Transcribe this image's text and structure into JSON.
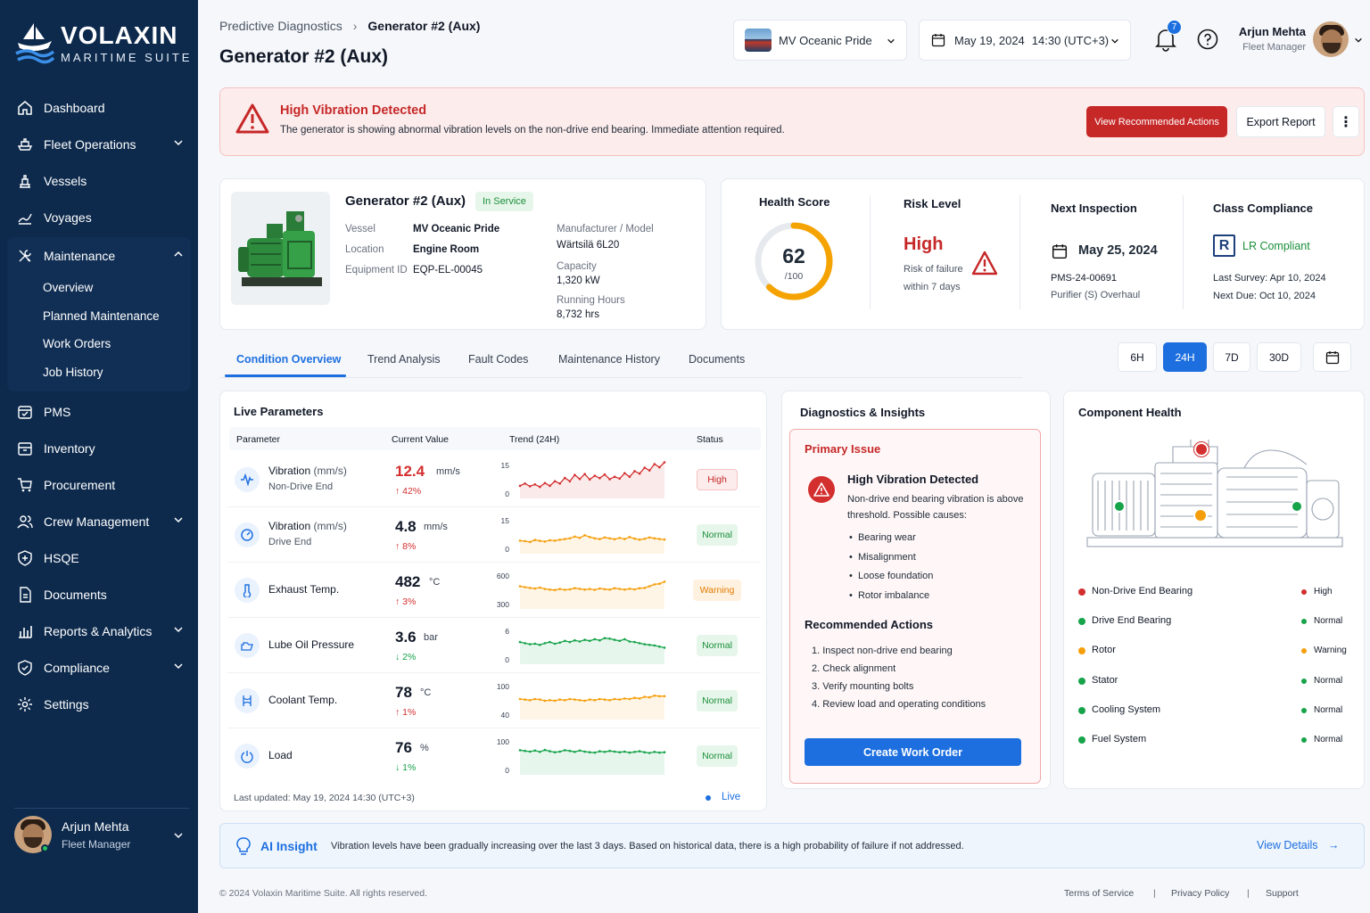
{
  "brand": {
    "title": "VOLAXIN",
    "subtitle": "MARITIME SUITE"
  },
  "sidebar": {
    "items": [
      {
        "label": "Dashboard",
        "icon": "home-icon"
      },
      {
        "label": "Fleet Operations",
        "icon": "ship-icon"
      },
      {
        "label": "Vessels",
        "icon": "vessel-icon"
      },
      {
        "label": "Voyages",
        "icon": "route-icon"
      },
      {
        "label": "Maintenance",
        "icon": "tools-icon"
      },
      {
        "label": "PMS",
        "icon": "calendar-check-icon"
      },
      {
        "label": "Inventory",
        "icon": "box-icon"
      },
      {
        "label": "Procurement",
        "icon": "cart-icon"
      },
      {
        "label": "Crew Management",
        "icon": "users-icon"
      },
      {
        "label": "HSQE",
        "icon": "shield-icon"
      },
      {
        "label": "Documents",
        "icon": "document-icon"
      },
      {
        "label": "Reports & Analytics",
        "icon": "bar-chart-icon"
      },
      {
        "label": "Compliance",
        "icon": "compliance-icon"
      },
      {
        "label": "Settings",
        "icon": "gear-icon"
      }
    ],
    "maintenance_sub": [
      "Overview",
      "Planned Maintenance",
      "Work Orders",
      "Job History"
    ],
    "user": {
      "name": "Arjun Mehta",
      "role": "Fleet Manager"
    }
  },
  "header": {
    "breadcrumb_parent": "Predictive Diagnostics",
    "breadcrumb_current": "Generator #2 (Aux)",
    "title": "Generator #2 (Aux)",
    "vessel": "MV Oceanic Pride",
    "date": "May 19, 2024",
    "time": "14:30 (UTC+3)",
    "notifications": "7",
    "user_name": "Arjun Mehta",
    "user_role": "Fleet Manager"
  },
  "alert": {
    "title": "High Vibration Detected",
    "message": "The generator is showing abnormal vibration levels on the non-drive end bearing. Immediate attention required.",
    "primary_action": "View Recommended Actions",
    "secondary_action": "Export Report"
  },
  "equipment": {
    "name": "Generator #2 (Aux)",
    "status": "In Service",
    "vessel_label": "Vessel",
    "vessel": "MV Oceanic Pride",
    "location_label": "Location",
    "location": "Engine Room",
    "id_label": "Equipment ID",
    "id": "EQP-EL-00045",
    "model_label": "Manufacturer / Model",
    "model": "Wärtsilä 6L20",
    "capacity_label": "Capacity",
    "capacity": "1,320 kW",
    "hours_label": "Running Hours",
    "hours": "8,732 hrs"
  },
  "summary": {
    "health_label": "Health Score",
    "health_value": "62",
    "health_max": "/100",
    "health_fraction": 0.62,
    "risk_label": "Risk Level",
    "risk_value": "High",
    "risk_line1": "Risk of failure",
    "risk_line2": "within 7 days",
    "inspection_label": "Next Inspection",
    "inspection_date": "May 25, 2024",
    "inspection_id": "PMS-24-00691",
    "inspection_task": "Purifier (S) Overhaul",
    "class_label": "Class Compliance",
    "class_value": "LR Compliant",
    "last_survey": "Last Survey:  Apr 10, 2024",
    "next_due": "Next Due:  Oct 10, 2024"
  },
  "tabs": [
    "Condition Overview",
    "Trend Analysis",
    "Fault Codes",
    "Maintenance History",
    "Documents"
  ],
  "ranges": [
    "6H",
    "24H",
    "7D",
    "30D"
  ],
  "live": {
    "title": "Live Parameters",
    "headers": {
      "param": "Parameter",
      "value": "Current Value",
      "trend": "Trend (24H)",
      "status": "Status"
    },
    "rows": [
      {
        "name": "Vibration",
        "unit_paren": "(mm/s)",
        "sub": "Non-Drive End",
        "value": "12.4",
        "unit": "mm/s",
        "change": "↑ 42%",
        "ymax": "15",
        "ymin": "0",
        "status": "High",
        "color": "#d32f2f",
        "trend": [
          4,
          5,
          3.8,
          4.6,
          3.5,
          5.2,
          4,
          6,
          5,
          7.5,
          6,
          8.8,
          7,
          9.2,
          6.8,
          8.5,
          7.4,
          9,
          6.9,
          8,
          7.2,
          9.6,
          8,
          10.5,
          9.4,
          12,
          10.8,
          13.6,
          12.2,
          14.4
        ]
      },
      {
        "name": "Vibration",
        "unit_paren": "(mm/s)",
        "sub": "Drive End",
        "value": "4.8",
        "unit": "mm/s",
        "change": "↑ 8%",
        "ymax": "15",
        "ymin": "0",
        "status": "Normal",
        "color": "#f59e0b",
        "trend": [
          4.2,
          4,
          3.6,
          4.5,
          4.1,
          3.8,
          4.4,
          4.2,
          4.6,
          4.9,
          5.2,
          6,
          5.4,
          6.6,
          5.8,
          5.2,
          4.9,
          5.6,
          5.2,
          4.8,
          5.4,
          4.9,
          5.8,
          5.1,
          4.6,
          5,
          5.6,
          5.2,
          4.9,
          4.7
        ]
      },
      {
        "name": "Exhaust Temp.",
        "unit_paren": "",
        "sub": "",
        "value": "482",
        "unit": "°C",
        "change": "↑ 3%",
        "ymax": "600",
        "ymin": "300",
        "status": "Warning",
        "color": "#f59e0b",
        "trend": [
          470,
          462,
          455,
          450,
          458,
          446,
          440,
          436,
          445,
          438,
          442,
          452,
          447,
          440,
          445,
          438,
          450,
          444,
          440,
          452,
          446,
          440,
          448,
          442,
          452,
          455,
          470,
          486,
          492,
          510
        ]
      },
      {
        "name": "Lube Oil Pressure",
        "unit_paren": "",
        "sub": "",
        "value": "3.6",
        "unit": "bar",
        "change": "↓ 2%",
        "ymax": "6",
        "ymin": "0",
        "status": "Normal",
        "color": "#16a34a",
        "trend": [
          3.3,
          3.1,
          2.9,
          3,
          2.8,
          3.1,
          3.3,
          3,
          3.2,
          3.5,
          3.3,
          3.6,
          3.4,
          3.7,
          3.5,
          3.8,
          3.6,
          4,
          3.9,
          3.7,
          3.5,
          3.8,
          3.4,
          3.3,
          3.1,
          2.9,
          2.8,
          2.7,
          2.5,
          2.3
        ]
      },
      {
        "name": "Coolant Temp.",
        "unit_paren": "",
        "sub": "",
        "value": "78",
        "unit": "°C",
        "change": "↑ 1%",
        "ymax": "100",
        "ymin": "40",
        "status": "Normal",
        "color": "#f59e0b",
        "trend": [
          70,
          69,
          68,
          70,
          69,
          67,
          68,
          67,
          69,
          68,
          70,
          69,
          68,
          67,
          69,
          68,
          70,
          69,
          68,
          70,
          69,
          71,
          70,
          72,
          71,
          74,
          73,
          76,
          75,
          75
        ]
      },
      {
        "name": "Load",
        "unit_paren": "",
        "sub": "",
        "value": "76",
        "unit": "%",
        "change": "↓ 1%",
        "ymax": "100",
        "ymin": "0",
        "status": "Normal",
        "color": "#16a34a",
        "trend": [
          62,
          60,
          58,
          61,
          57,
          63,
          59,
          56,
          58,
          62,
          60,
          57,
          61,
          58,
          56,
          55,
          59,
          57,
          60,
          58,
          56,
          58,
          55,
          57,
          59,
          56,
          54,
          57,
          55,
          56
        ]
      }
    ],
    "updated": "Last updated: May 19, 2024  14:30 (UTC+3)",
    "live": "Live"
  },
  "diagnostics": {
    "title": "Diagnostics & Insights",
    "primary_label": "Primary Issue",
    "issue_title": "High Vibration Detected",
    "issue_text1": "Non-drive end bearing vibration is above",
    "issue_text2": "threshold. Possible causes:",
    "causes": [
      "Bearing wear",
      "Misalignment",
      "Loose foundation",
      "Rotor imbalance"
    ],
    "actions_title": "Recommended Actions",
    "actions": [
      "1.  Inspect non-drive end bearing",
      "2.  Check alignment",
      "3.  Verify mounting bolts",
      "4.  Review load and operating conditions"
    ],
    "button": "Create Work Order"
  },
  "components": {
    "title": "Component Health",
    "rows": [
      {
        "name": "Non-Drive End Bearing",
        "status": "High",
        "color": "#d32f2f"
      },
      {
        "name": "Drive End Bearing",
        "status": "Normal",
        "color": "#16a34a"
      },
      {
        "name": "Rotor",
        "status": "Warning",
        "color": "#f59e0b"
      },
      {
        "name": "Stator",
        "status": "Normal",
        "color": "#16a34a"
      },
      {
        "name": "Cooling System",
        "status": "Normal",
        "color": "#16a34a"
      },
      {
        "name": "Fuel System",
        "status": "Normal",
        "color": "#16a34a"
      }
    ]
  },
  "insight": {
    "title": "AI Insight",
    "text": "Vibration levels have been gradually increasing over the last 3 days. Based on historical data, there is a high probability of failure if not addressed.",
    "link": "View Details"
  },
  "footer": {
    "copyright": "© 2024 Volaxin Maritime Suite. All rights reserved.",
    "terms": "Terms of Service",
    "privacy": "Privacy Policy",
    "support": "Support"
  },
  "colors": {
    "navy": "#0d2a4d",
    "accent": "#1d6fe0",
    "danger": "#c62828",
    "ok": "#16a34a",
    "warn": "#f59e0b"
  }
}
